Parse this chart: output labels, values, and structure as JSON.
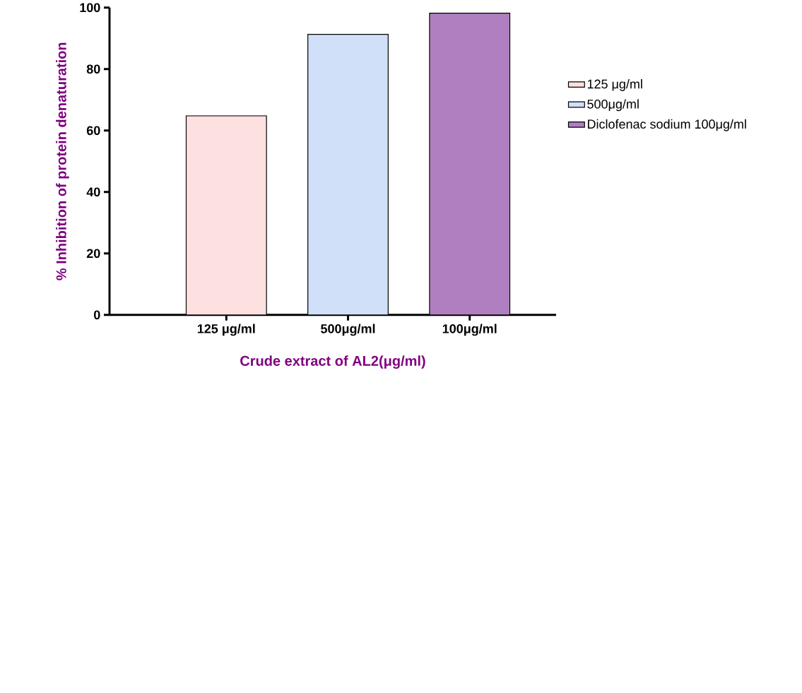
{
  "chart_data": {
    "type": "bar",
    "xlabel": "Crude extract  of AL2(μg/ml)",
    "ylabel": "% Inhibition of protein denaturation",
    "categories": [
      "125 μg/ml",
      "500μg/ml",
      "100μg/ml"
    ],
    "series": [
      {
        "name": "125 μg/ml",
        "color": "#fde0e0",
        "values": [
          64.8,
          null,
          null
        ]
      },
      {
        "name": "500μg/ml",
        "color": "#cfe0f8",
        "values": [
          null,
          91.3,
          null
        ]
      },
      {
        "name": "Diclofenac sodium 100μg/ml",
        "color": "#b07fc0",
        "values": [
          null,
          null,
          98.2
        ]
      }
    ],
    "ylim": [
      0,
      100
    ],
    "yticks": [
      0,
      20,
      40,
      60,
      80,
      100
    ],
    "legend": "right",
    "grid": false
  }
}
